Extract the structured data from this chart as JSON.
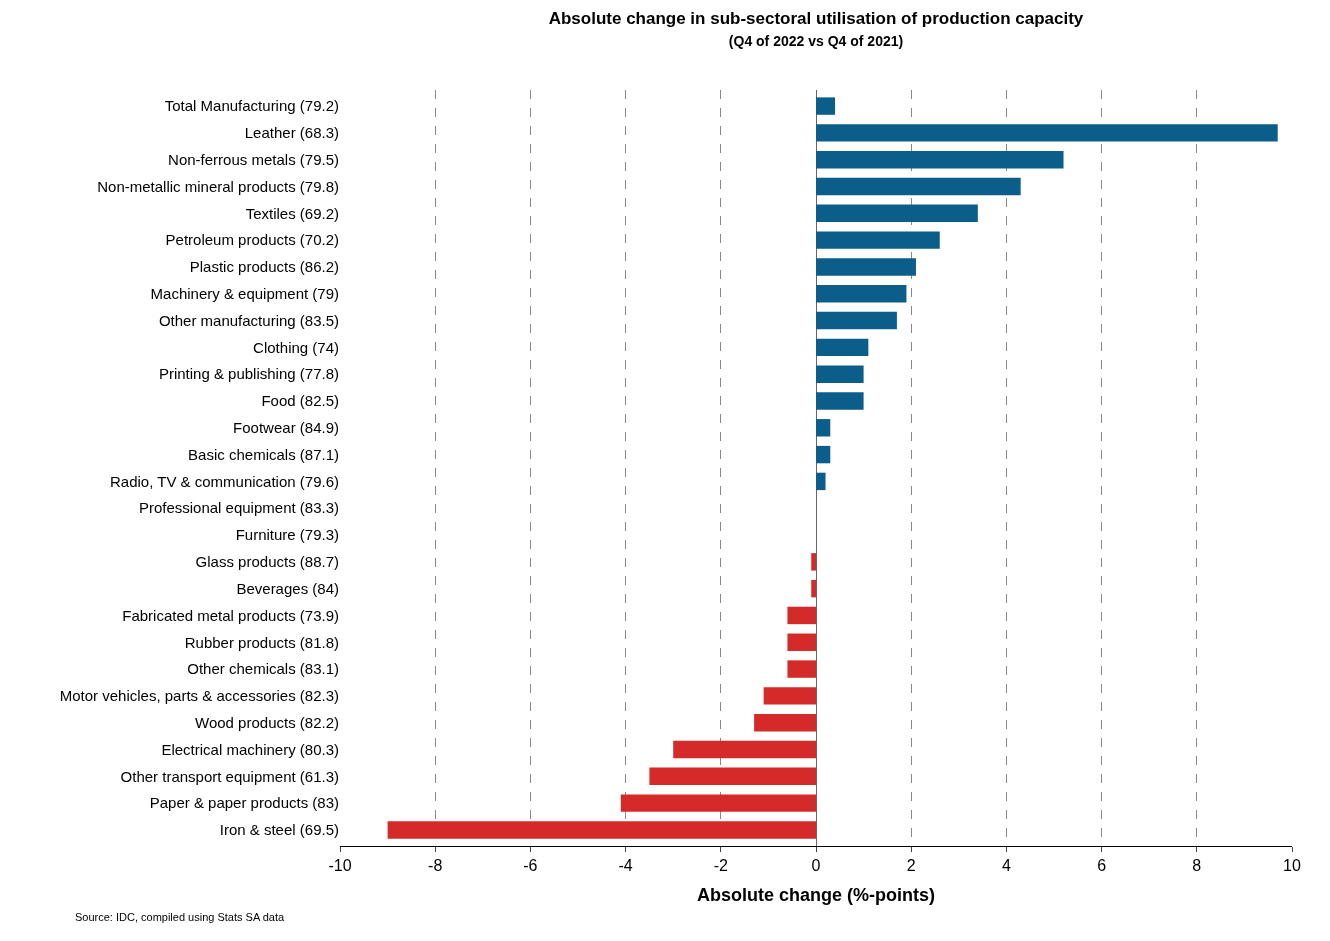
{
  "chart_data": {
    "type": "bar",
    "orientation": "horizontal",
    "title": "Absolute change in sub-sectoral utilisation of production capacity",
    "subtitle": "(Q4 of 2022 vs Q4 of 2021)",
    "xlabel": "Absolute change (%-points)",
    "categories": [
      "Total Manufacturing (79.2)",
      "Leather (68.3)",
      "Non-ferrous metals (79.5)",
      "Non-metallic mineral products (79.8)",
      "Textiles (69.2)",
      "Petroleum products (70.2)",
      "Plastic products (86.2)",
      "Machinery & equipment (79)",
      "Other manufacturing (83.5)",
      "Clothing (74)",
      "Printing & publishing (77.8)",
      "Food (82.5)",
      "Footwear (84.9)",
      "Basic chemicals (87.1)",
      "Radio, TV & communication (79.6)",
      "Professional equipment (83.3)",
      "Furniture (79.3)",
      "Glass products (88.7)",
      "Beverages (84)",
      "Fabricated metal products (73.9)",
      "Rubber products (81.8)",
      "Other chemicals (83.1)",
      "Motor vehicles, parts & accessories (82.3)",
      "Wood products (82.2)",
      "Electrical machinery (80.3)",
      "Other transport equipment (61.3)",
      "Paper & paper products (83)",
      "Iron & steel (69.5)"
    ],
    "values": [
      0.4,
      9.7,
      5.2,
      4.3,
      3.4,
      2.6,
      2.1,
      1.9,
      1.7,
      1.1,
      1.0,
      1.0,
      0.3,
      0.3,
      0.2,
      0,
      0,
      -0.1,
      -0.1,
      -0.6,
      -0.6,
      -0.6,
      -1.1,
      -1.3,
      -3.0,
      -3.5,
      -4.1,
      -9.0
    ],
    "colors": [
      "#0b5e8a",
      "#0b5e8a",
      "#0b5e8a",
      "#0b5e8a",
      "#0b5e8a",
      "#0b5e8a",
      "#0b5e8a",
      "#0b5e8a",
      "#0b5e8a",
      "#0b5e8a",
      "#0b5e8a",
      "#0b5e8a",
      "#0b5e8a",
      "#0b5e8a",
      "#0b5e8a",
      "#0b5e8a",
      "#0b5e8a",
      "#d42a2a",
      "#d42a2a",
      "#d42a2a",
      "#d42a2a",
      "#d42a2a",
      "#d42a2a",
      "#d42a2a",
      "#d42a2a",
      "#d42a2a",
      "#d42a2a",
      "#d42a2a"
    ],
    "xlim": [
      -10,
      10
    ],
    "xticks": [
      -10,
      -8,
      -6,
      -4,
      -2,
      0,
      2,
      4,
      6,
      8,
      10
    ],
    "grid": "x",
    "annotations": [
      "Source: IDC, compiled using Stats SA data"
    ]
  }
}
